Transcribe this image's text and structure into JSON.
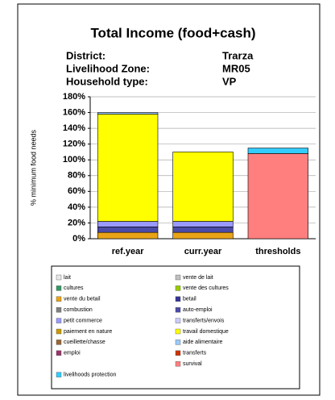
{
  "chart_data": {
    "type": "stacked-bar",
    "title": "Total Income (food+cash)",
    "info": [
      {
        "label": "District:",
        "value": "Trarza"
      },
      {
        "label": "Livelihood Zone:",
        "value": "MR05"
      },
      {
        "label": "Household type:",
        "value": "VP"
      }
    ],
    "y_label": "% minimum food needs",
    "categories": [
      "ref.year",
      "curr.year",
      "thresholds"
    ],
    "ylim": [
      0,
      180
    ],
    "yticks": [
      {
        "value": 0,
        "label": "0%"
      },
      {
        "value": 20,
        "label": "20%"
      },
      {
        "value": 40,
        "label": "40%"
      },
      {
        "value": 60,
        "label": "60%"
      },
      {
        "value": 80,
        "label": "80%"
      },
      {
        "value": 100,
        "label": "100%"
      },
      {
        "value": 120,
        "label": "120%"
      },
      {
        "value": 140,
        "label": "140%"
      },
      {
        "value": 160,
        "label": "160%"
      },
      {
        "value": 180,
        "label": "180%"
      }
    ],
    "grid": true,
    "series": [
      {
        "name": "lait",
        "color": "#e8e8e8",
        "values": [
          0,
          0,
          0
        ]
      },
      {
        "name": "vente de lait",
        "color": "#c0c0c0",
        "values": [
          0,
          0,
          0
        ]
      },
      {
        "name": "cultures",
        "color": "#339966",
        "values": [
          0,
          0,
          0
        ]
      },
      {
        "name": "vente des cultures",
        "color": "#99cc00",
        "values": [
          0,
          0,
          0
        ]
      },
      {
        "name": "vente du betail",
        "color": "#e8a317",
        "values": [
          8,
          8,
          0
        ]
      },
      {
        "name": "betail",
        "color": "#333399",
        "values": [
          0,
          0,
          0
        ]
      },
      {
        "name": "combustion",
        "color": "#808080",
        "values": [
          0,
          0,
          0
        ]
      },
      {
        "name": "auto-emploi",
        "color": "#4a4aa8",
        "values": [
          7,
          7,
          0
        ]
      },
      {
        "name": "petit commerce",
        "color": "#9999ff",
        "values": [
          7,
          7,
          0
        ]
      },
      {
        "name": "transferts/envois",
        "color": "#ccccff",
        "values": [
          0,
          0,
          0
        ]
      },
      {
        "name": "paiement en nature",
        "color": "#cc9900",
        "values": [
          0,
          0,
          0
        ]
      },
      {
        "name": "travail domestique",
        "color": "#ffff00",
        "values": [
          136,
          88,
          0
        ]
      },
      {
        "name": "cueillette/chasse",
        "color": "#996633",
        "values": [
          0,
          0,
          0
        ]
      },
      {
        "name": "aide alimentaire",
        "color": "#99ccff",
        "values": [
          2,
          0,
          0
        ]
      },
      {
        "name": "emploi",
        "color": "#993366",
        "values": [
          0,
          0,
          0
        ]
      },
      {
        "name": "transferts",
        "color": "#cc3300",
        "values": [
          0,
          0,
          0
        ]
      },
      {
        "name": "survival",
        "color": "#ff7f7f",
        "values": [
          0,
          0,
          108
        ]
      },
      {
        "name": "livelihoods protection",
        "color": "#33ccff",
        "values": [
          0,
          0,
          7
        ]
      }
    ]
  }
}
